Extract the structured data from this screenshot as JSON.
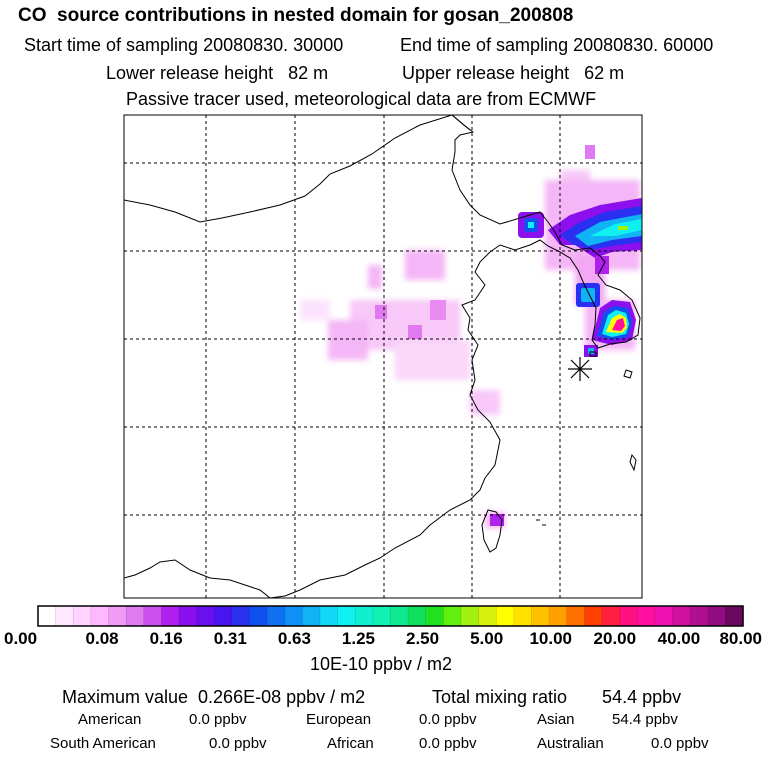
{
  "header": {
    "title": "CO  source contributions in nested domain for gosan_200808",
    "start_label": "Start time of sampling 20080830. 30000",
    "end_label": "End time of sampling 20080830. 60000",
    "lower_label": "Lower release height   82 m",
    "upper_label": "Upper release height   62 m",
    "tracer_label": "Passive tracer used, meteorological data are from ECMWF"
  },
  "chart_data": {
    "type": "heatmap",
    "title": "CO  source contributions in nested domain for gosan_200808",
    "colorbar": {
      "ticks": [
        "0.00",
        "0.08",
        "0.16",
        "0.31",
        "0.63",
        "1.25",
        "2.50",
        "5.00",
        "10.00",
        "20.00",
        "40.00",
        "80.00"
      ],
      "unit_label": "10E-10 ppbv / m2",
      "colors": [
        "#ffffff",
        "#ffe8ff",
        "#ffd2ff",
        "#ffb8ff",
        "#f09cf5",
        "#e07af0",
        "#cc50ee",
        "#b020ee",
        "#8c10ee",
        "#6a10f0",
        "#4a14f0",
        "#2a30f0",
        "#1050f0",
        "#0f70f0",
        "#0f90f5",
        "#10b4f5",
        "#10d8f5",
        "#10f0f0",
        "#10f0d0",
        "#10f0b0",
        "#10e890",
        "#10e060",
        "#20e020",
        "#60f010",
        "#a0f010",
        "#d8f010",
        "#ffff00",
        "#ffe000",
        "#ffc000",
        "#ffa000",
        "#ff7000",
        "#ff4000",
        "#ff2040",
        "#ff1080",
        "#ff10a0",
        "#ee10b0",
        "#d010a0",
        "#b01090",
        "#900c80",
        "#6a0860"
      ]
    },
    "station": "gosan",
    "grid_lines": "dashed"
  },
  "footer": {
    "max_label": "Maximum value  0.266E-08 ppbv / m2",
    "total_label": "Total mixing ratio       54.4 ppbv",
    "regions": [
      {
        "name": "American",
        "value": "0.0 ppbv"
      },
      {
        "name": "European",
        "value": "0.0 ppbv"
      },
      {
        "name": "Asian",
        "value": "54.4 ppbv"
      },
      {
        "name": "South American",
        "value": "0.0 ppbv"
      },
      {
        "name": "African",
        "value": "0.0 ppbv"
      },
      {
        "name": "Australian",
        "value": "0.0 ppbv"
      }
    ]
  }
}
